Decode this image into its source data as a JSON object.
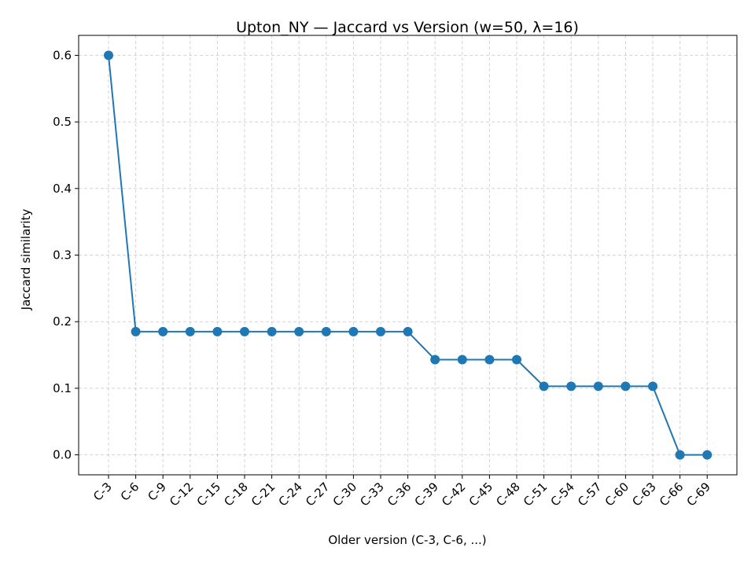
{
  "chart_data": {
    "type": "line",
    "title": "Upton_NY — Jaccard vs Version (w=50, λ=16)",
    "xlabel": "Older version (C-3, C-6, ...)",
    "ylabel": "Jaccard similarity",
    "categories": [
      "C-3",
      "C-6",
      "C-9",
      "C-12",
      "C-15",
      "C-18",
      "C-21",
      "C-24",
      "C-27",
      "C-30",
      "C-33",
      "C-36",
      "C-39",
      "C-42",
      "C-45",
      "C-48",
      "C-51",
      "C-54",
      "C-57",
      "C-60",
      "C-63",
      "C-66",
      "C-69"
    ],
    "series": [
      {
        "values": [
          0.6,
          0.185,
          0.185,
          0.185,
          0.185,
          0.185,
          0.185,
          0.185,
          0.185,
          0.185,
          0.185,
          0.185,
          0.143,
          0.143,
          0.143,
          0.143,
          0.103,
          0.103,
          0.103,
          0.103,
          0.103,
          0.0,
          0.0
        ],
        "color": "#1f77b4",
        "marker": "circle"
      }
    ],
    "yticks": [
      "0.0",
      "0.1",
      "0.2",
      "0.3",
      "0.4",
      "0.5",
      "0.6"
    ],
    "ylim": [
      -0.03,
      0.63
    ],
    "grid": true,
    "legend": "none"
  }
}
